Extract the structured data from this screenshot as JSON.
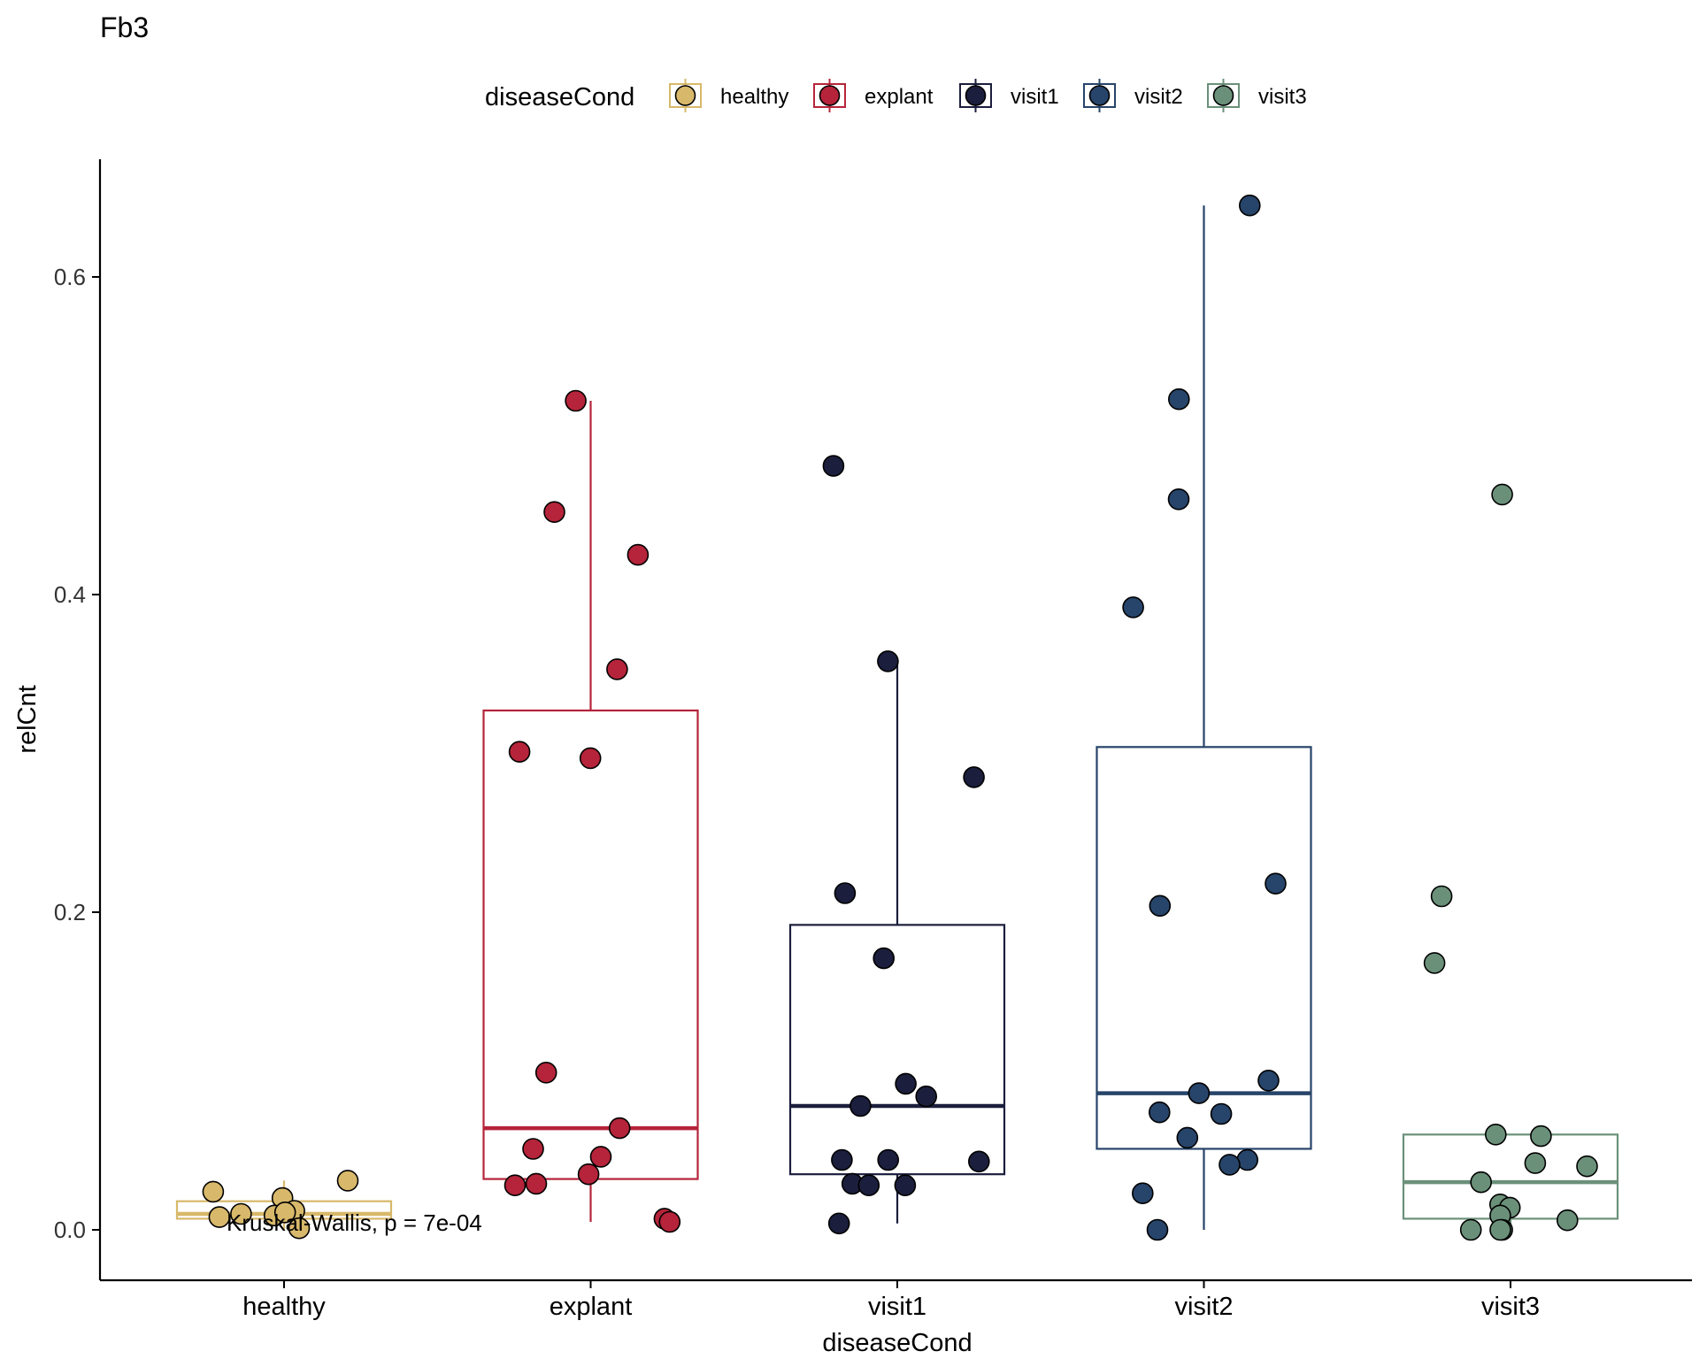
{
  "chart_data": {
    "type": "box",
    "title": "Fb3",
    "xlabel": "diseaseCond",
    "ylabel": "relCnt",
    "ylim": [
      -0.032,
      0.674
    ],
    "yticks": [
      0.0,
      0.2,
      0.4,
      0.6
    ],
    "ytick_labels": [
      "0.0",
      "0.2",
      "0.4",
      "0.6"
    ],
    "categories": [
      "healthy",
      "explant",
      "visit1",
      "visit2",
      "visit3"
    ],
    "legend": {
      "title": "diseaseCond",
      "position": "top",
      "entries": [
        "healthy",
        "explant",
        "visit1",
        "visit2",
        "visit3"
      ]
    },
    "annotation": "Kruskal-Wallis, p = 7e-04",
    "grid": false,
    "colors": {
      "healthy": "#D8B86A",
      "explant": "#B5243A",
      "visit1": "#1B1E3C",
      "visit2": "#27446A",
      "visit3": "#6B907A"
    },
    "boxes": [
      {
        "name": "healthy",
        "whisker_low": 0.0,
        "q1": 0.007,
        "median": 0.01,
        "q3": 0.018,
        "whisker_high": 0.031
      },
      {
        "name": "explant",
        "whisker_low": 0.005,
        "q1": 0.032,
        "median": 0.064,
        "q3": 0.327,
        "whisker_high": 0.522
      },
      {
        "name": "visit1",
        "whisker_low": 0.004,
        "q1": 0.035,
        "median": 0.078,
        "q3": 0.192,
        "whisker_high": 0.358
      },
      {
        "name": "visit2",
        "whisker_low": 0.0,
        "q1": 0.051,
        "median": 0.086,
        "q3": 0.304,
        "whisker_high": 0.645
      },
      {
        "name": "visit3",
        "whisker_low": 0.0,
        "q1": 0.007,
        "median": 0.03,
        "q3": 0.06,
        "whisker_high": 0.06
      }
    ],
    "points": [
      {
        "group": "healthy",
        "values": [
          0.02,
          0.012,
          0.008,
          0.01,
          0.009,
          0.011,
          0.024,
          0.031,
          0.001
        ]
      },
      {
        "group": "explant",
        "values": [
          0.522,
          0.452,
          0.425,
          0.353,
          0.301,
          0.297,
          0.099,
          0.064,
          0.051,
          0.046,
          0.035,
          0.029,
          0.028,
          0.007,
          0.005
        ]
      },
      {
        "group": "visit1",
        "values": [
          0.481,
          0.358,
          0.285,
          0.212,
          0.171,
          0.092,
          0.084,
          0.078,
          0.044,
          0.043,
          0.044,
          0.029,
          0.028,
          0.028,
          0.004
        ]
      },
      {
        "group": "visit2",
        "values": [
          0.645,
          0.523,
          0.46,
          0.392,
          0.218,
          0.204,
          0.094,
          0.086,
          0.074,
          0.073,
          0.058,
          0.044,
          0.041,
          0.023,
          0.0
        ]
      },
      {
        "group": "visit3",
        "values": [
          0.463,
          0.21,
          0.168,
          0.06,
          0.059,
          0.042,
          0.04,
          0.03,
          0.016,
          0.014,
          0.009,
          0.006,
          0.0,
          0.0,
          0.0
        ]
      }
    ]
  }
}
